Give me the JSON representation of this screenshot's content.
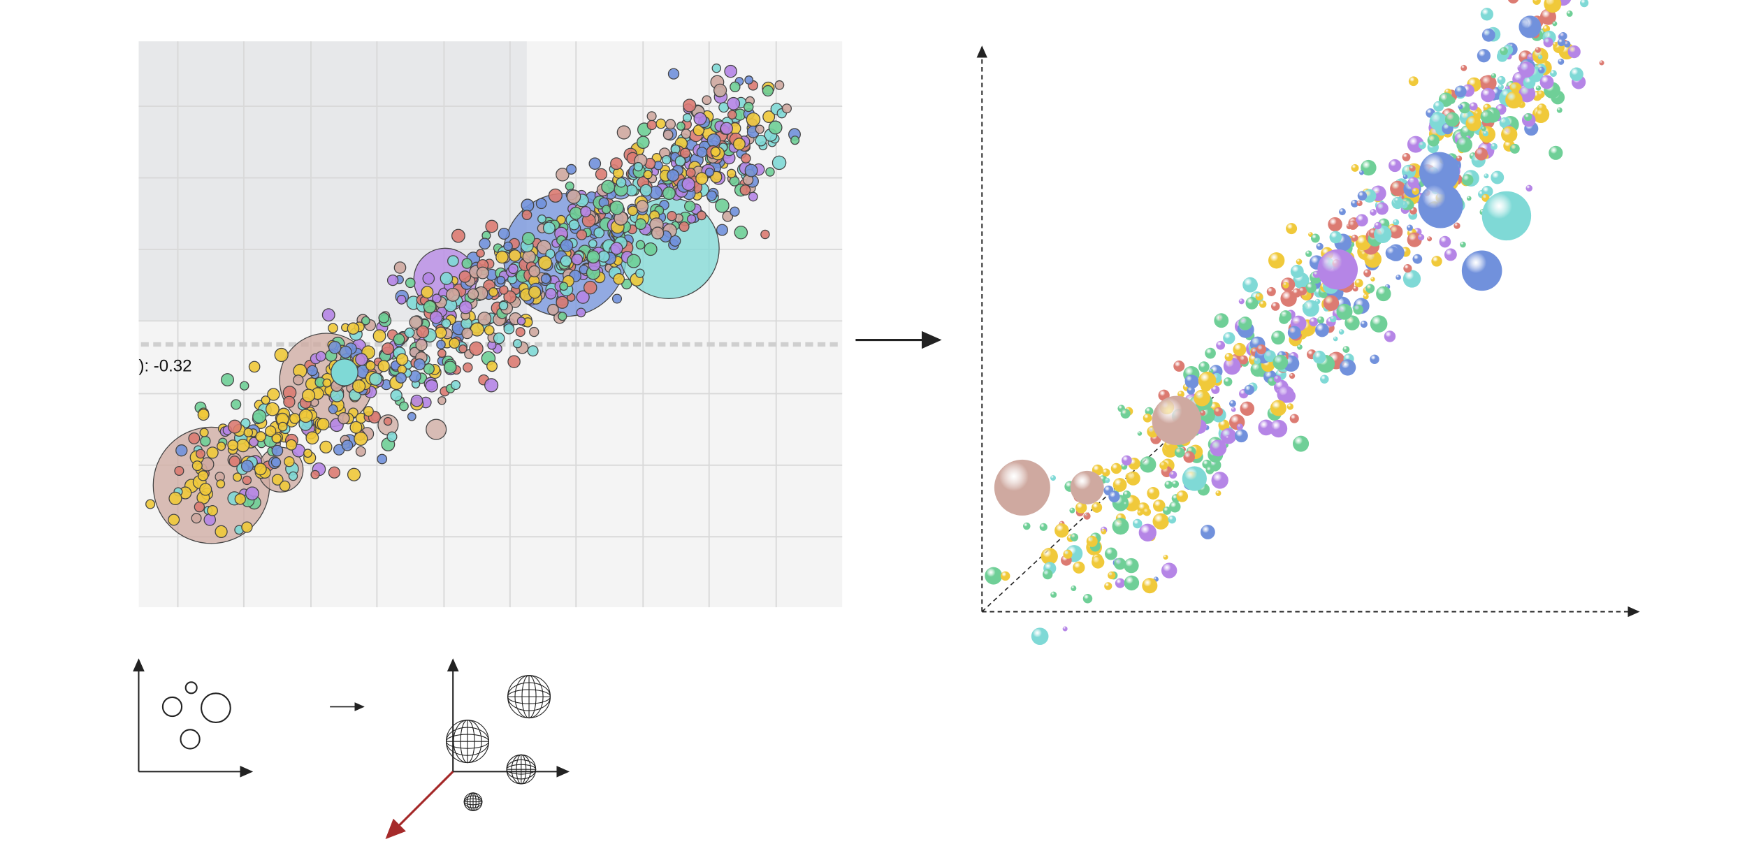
{
  "correlation_label": "): -0.32"
}
